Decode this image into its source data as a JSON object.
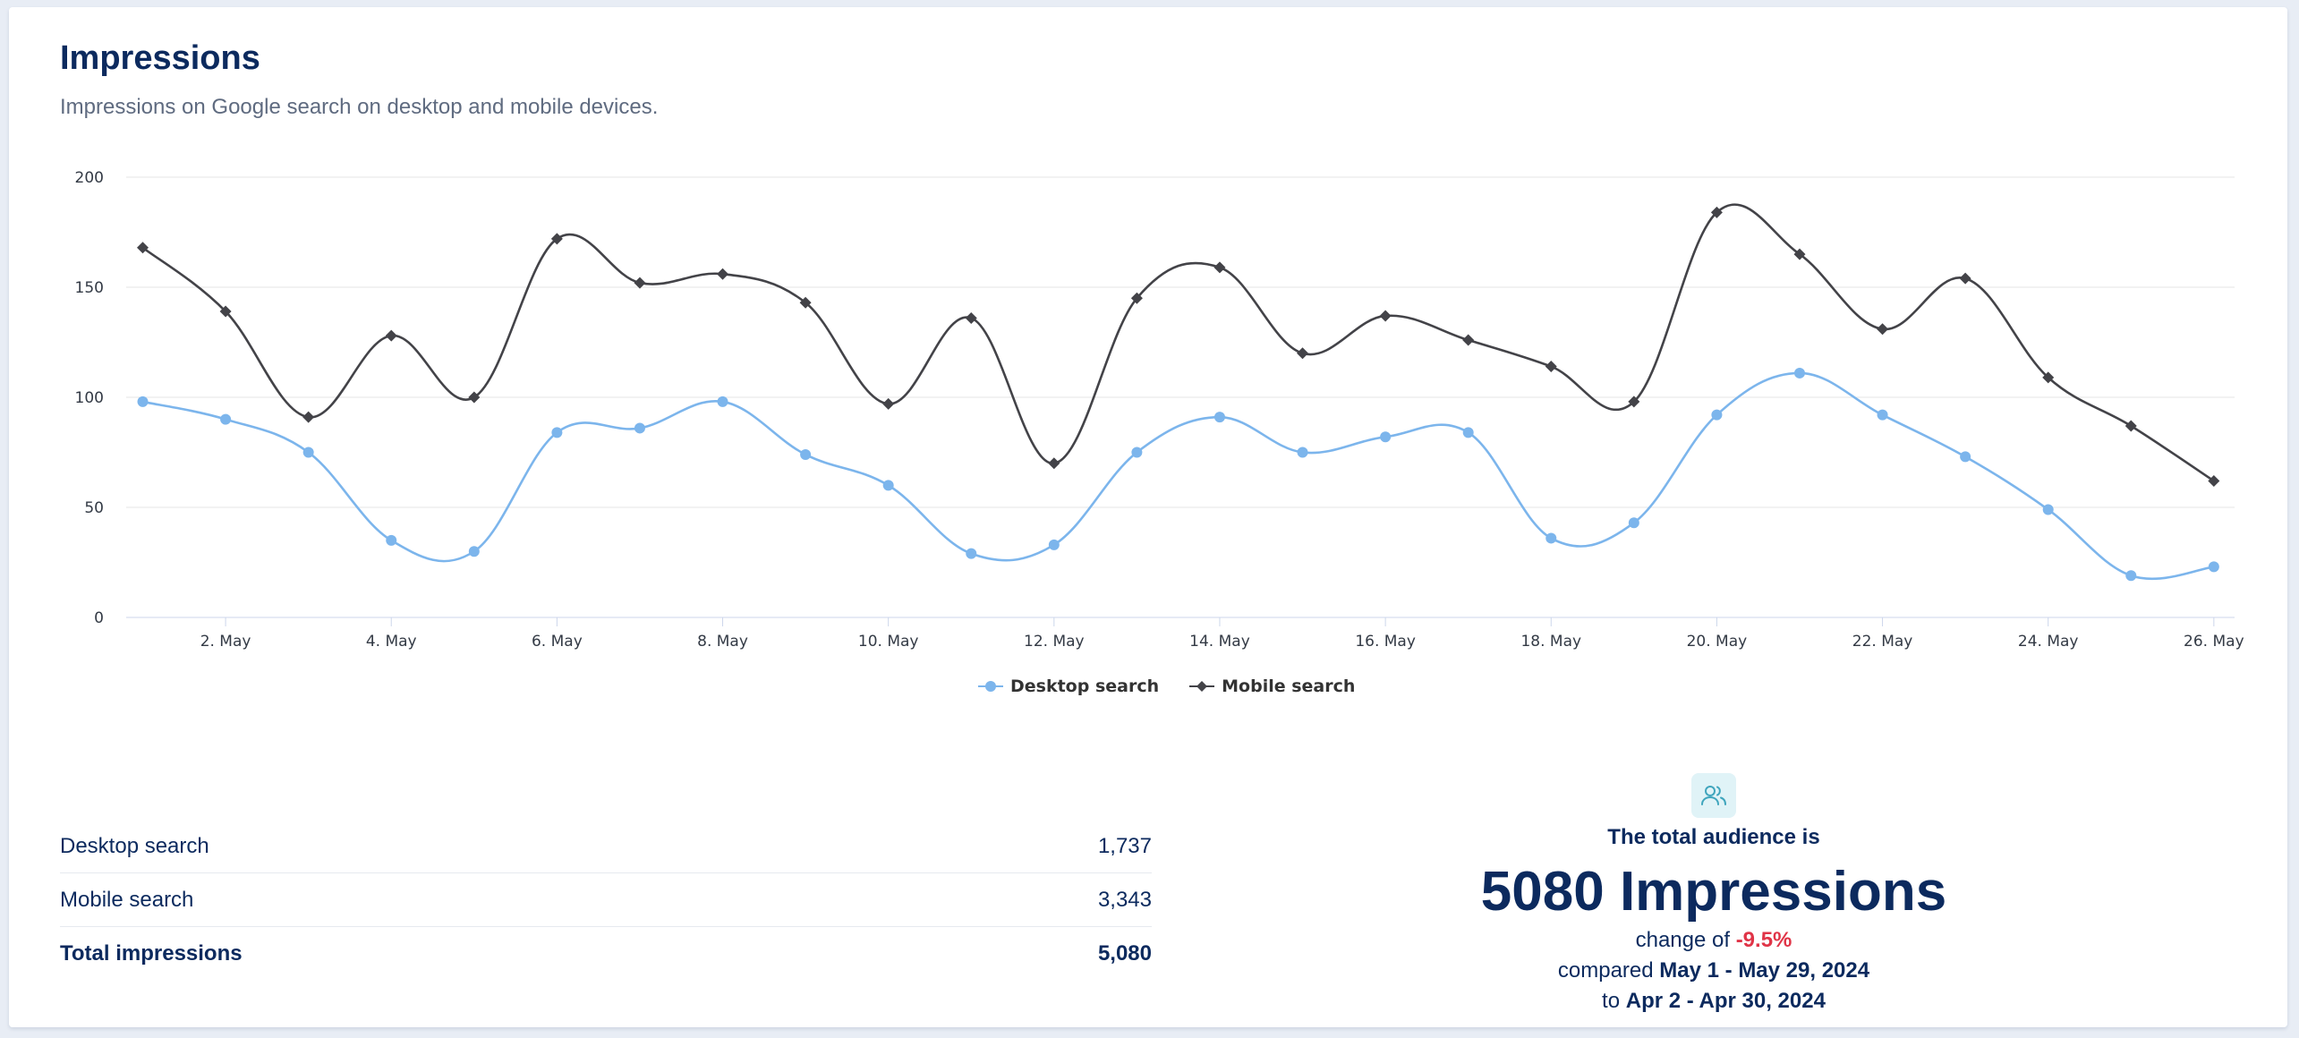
{
  "header": {
    "title": "Impressions",
    "subtitle": "Impressions on Google search on desktop and mobile devices."
  },
  "chart_data": {
    "type": "line",
    "title": "",
    "xlabel": "",
    "ylabel": "",
    "x": [
      1,
      2,
      3,
      4,
      5,
      6,
      7,
      8,
      9,
      10,
      11,
      12,
      13,
      14,
      15,
      16,
      17,
      18,
      19,
      20,
      21,
      22,
      23,
      24,
      25,
      26
    ],
    "x_tick_labels": [
      "2. May",
      "4. May",
      "6. May",
      "8. May",
      "10. May",
      "12. May",
      "14. May",
      "16. May",
      "18. May",
      "20. May",
      "22. May",
      "24. May",
      "26. May"
    ],
    "x_tick_values": [
      2,
      4,
      6,
      8,
      10,
      12,
      14,
      16,
      18,
      20,
      22,
      24,
      26
    ],
    "xlim": [
      0.8,
      26.25
    ],
    "ylim": [
      0,
      200
    ],
    "y_ticks": [
      0,
      50,
      100,
      150,
      200
    ],
    "grid": true,
    "legend_position": "bottom-center",
    "series": [
      {
        "name": "Desktop search",
        "color": "#7cb5ec",
        "marker": "circle",
        "values": [
          98,
          90,
          75,
          35,
          30,
          84,
          86,
          98,
          74,
          60,
          29,
          33,
          75,
          91,
          75,
          82,
          84,
          36,
          43,
          92,
          111,
          92,
          73,
          49,
          19,
          23
        ]
      },
      {
        "name": "Mobile search",
        "color": "#434348",
        "marker": "diamond",
        "values": [
          168,
          139,
          91,
          128,
          100,
          172,
          152,
          156,
          143,
          97,
          136,
          70,
          145,
          159,
          120,
          137,
          126,
          114,
          98,
          184,
          165,
          131,
          154,
          109,
          87,
          62
        ]
      }
    ]
  },
  "stats": {
    "rows": [
      {
        "label": "Desktop search",
        "value": "1,737"
      },
      {
        "label": "Mobile search",
        "value": "3,343"
      }
    ],
    "total": {
      "label": "Total impressions",
      "value": "5,080"
    }
  },
  "summary": {
    "icon": "users-icon",
    "label": "The total audience is",
    "big_value": "5080 Impressions",
    "change_prefix": "change of ",
    "change_value": "-9.5%",
    "compared_prefix": "compared ",
    "compared_range": "May 1 - May 29, 2024",
    "to_prefix": "to ",
    "to_range": "Apr 2 - Apr 30, 2024"
  }
}
